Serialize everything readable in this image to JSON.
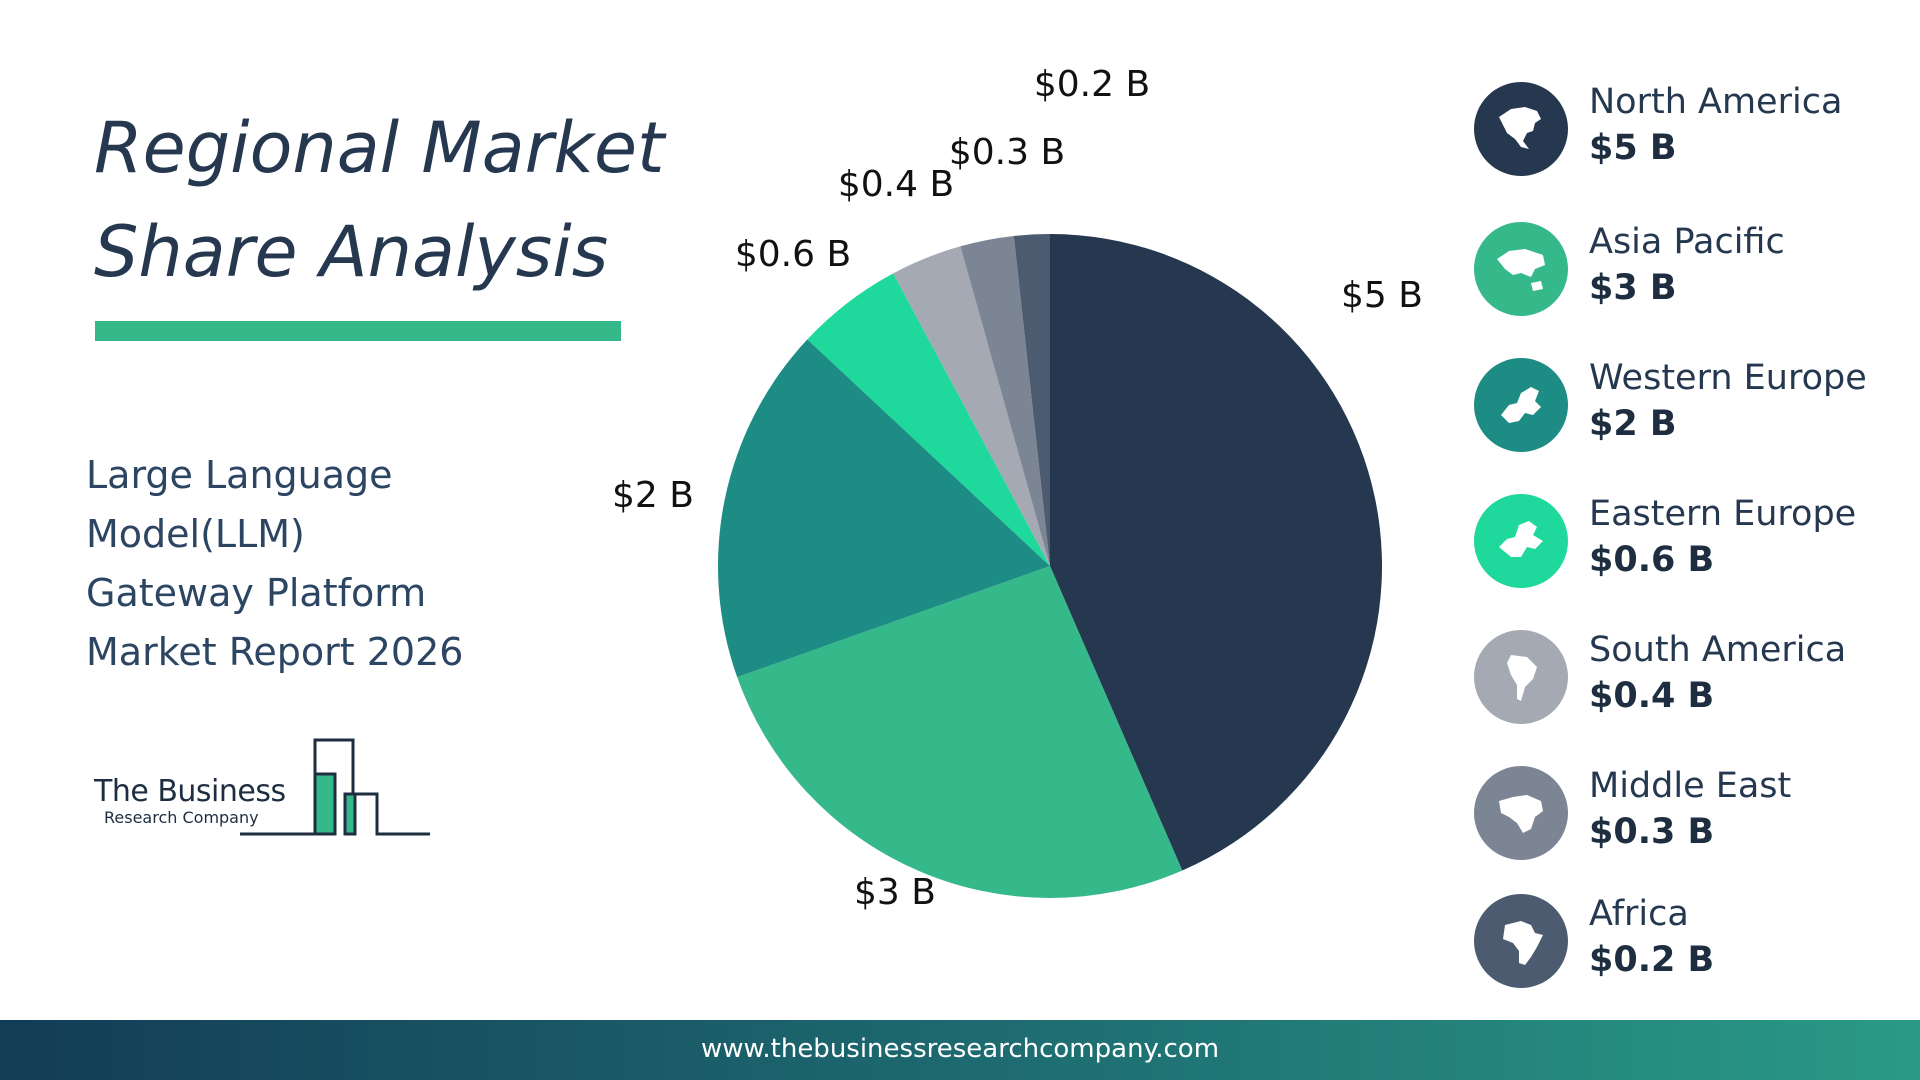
{
  "header": {
    "title_lines": [
      "Regional Market",
      "Share Analysis"
    ],
    "subtitle_lines": [
      "Large Language",
      "Model(LLM)",
      "Gateway Platform",
      "Market Report 2026"
    ]
  },
  "logo": {
    "line1": "The Business",
    "line2": "Research Company"
  },
  "chart_data": {
    "type": "pie",
    "start_angle": "12 o'clock, clockwise",
    "slices": [
      {
        "label": "North America",
        "value": 5,
        "display": "$5 B",
        "color": "#25384f",
        "icon": "north-america-map-icon"
      },
      {
        "label": "Asia Pacific",
        "value": 3,
        "display": "$3 B",
        "color": "#35b88a",
        "icon": "asia-pacific-map-icon"
      },
      {
        "label": "Western Europe",
        "value": 2,
        "display": "$2 B",
        "color": "#1c8c84",
        "icon": "western-europe-map-icon"
      },
      {
        "label": "Eastern Europe",
        "value": 0.6,
        "display": "$0.6 B",
        "color": "#1fd99c",
        "icon": "eastern-europe-map-icon"
      },
      {
        "label": "South America",
        "value": 0.4,
        "display": "$0.4 B",
        "color": "#a4a9b3",
        "icon": "south-america-map-icon"
      },
      {
        "label": "Middle East",
        "value": 0.3,
        "display": "$0.3 B",
        "color": "#7b8593",
        "icon": "middle-east-map-icon"
      },
      {
        "label": "Africa",
        "value": 0.2,
        "display": "$0.2 B",
        "color": "#4c5b6f",
        "icon": "africa-map-icon"
      }
    ],
    "unit": "USD billions",
    "legend_placement": "right"
  },
  "footer": {
    "url": "www.thebusinessresearchcompany.com"
  }
}
